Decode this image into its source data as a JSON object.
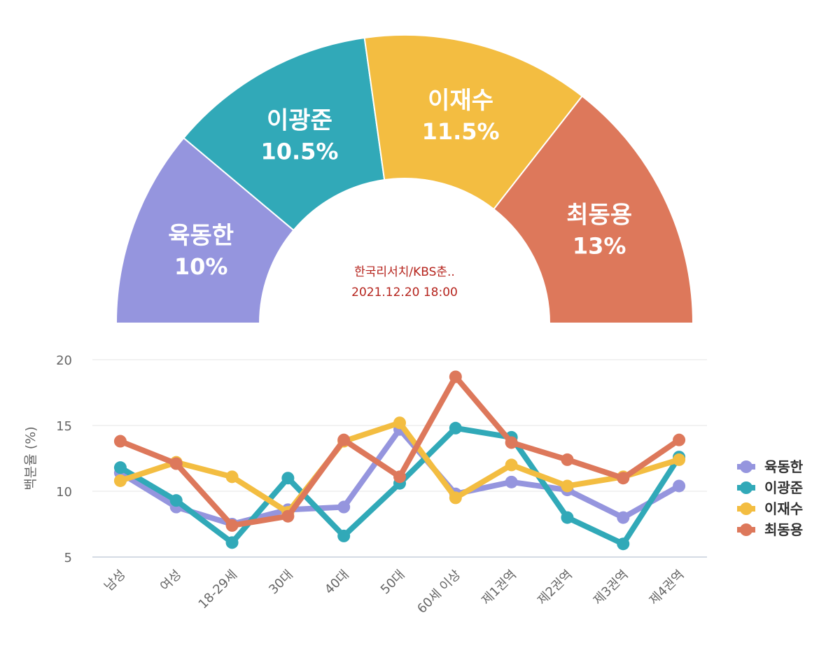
{
  "chart_data": [
    {
      "type": "pie",
      "subtype": "semi-donut",
      "source": "한국리서치/KBS춘..",
      "datetime": "2021.12.20 18:00",
      "slices": [
        {
          "name": "육동한",
          "value": 10,
          "label": "10%",
          "color": "#9595de"
        },
        {
          "name": "이광준",
          "value": 10.5,
          "label": "10.5%",
          "color": "#31a9b8"
        },
        {
          "name": "이재수",
          "value": 11.5,
          "label": "11.5%",
          "color": "#f3bd41"
        },
        {
          "name": "최동용",
          "value": 13,
          "label": "13%",
          "color": "#dd785b"
        }
      ]
    },
    {
      "type": "line",
      "ylabel": "백분율 (%)",
      "xlabel": "",
      "ylim": [
        5,
        20
      ],
      "yticks": [
        5,
        10,
        15,
        20
      ],
      "grid": true,
      "legend_position": "right",
      "categories": [
        "남성",
        "여성",
        "18-29세",
        "30대",
        "40대",
        "50대",
        "60세 이상",
        "제1권역",
        "제2권역",
        "제3권역",
        "제4권역"
      ],
      "series": [
        {
          "name": "육동한",
          "color": "#9595de",
          "values": [
            11.4,
            8.8,
            7.5,
            8.6,
            8.8,
            14.7,
            9.8,
            10.7,
            10.1,
            8.0,
            10.4
          ]
        },
        {
          "name": "이광준",
          "color": "#31a9b8",
          "values": [
            11.8,
            9.3,
            6.1,
            11.0,
            6.6,
            10.6,
            14.8,
            14.1,
            8.0,
            6.0,
            12.6
          ]
        },
        {
          "name": "이재수",
          "color": "#f3bd41",
          "values": [
            10.8,
            12.2,
            11.1,
            8.4,
            13.8,
            15.2,
            9.5,
            12.0,
            10.4,
            11.1,
            12.4
          ]
        },
        {
          "name": "최동용",
          "color": "#dd785b",
          "values": [
            13.8,
            12.1,
            7.4,
            8.1,
            13.9,
            11.1,
            18.7,
            13.7,
            12.4,
            11.0,
            13.9
          ]
        }
      ]
    }
  ]
}
